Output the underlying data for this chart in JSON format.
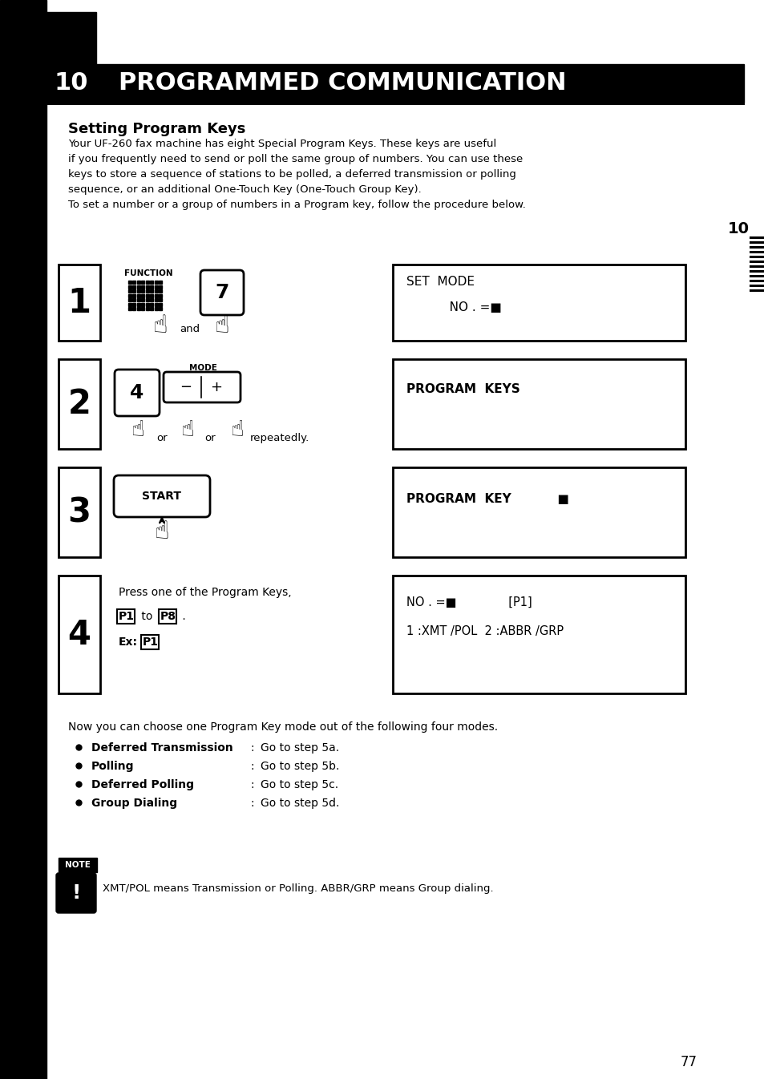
{
  "title_num": "10",
  "title_text": "PROGRAMMED COMMUNICATION",
  "section_title": "Setting Program Keys",
  "body_lines": [
    "Your UF-260 fax machine has eight Special Program Keys. These keys are useful",
    "if you frequently need to send or poll the same group of numbers. You can use these",
    "keys to store a sequence of stations to be polled, a deferred transmission or polling",
    "sequence, or an additional One-Touch Key (One-Touch Group Key).",
    "To set a number or a group of numbers in a Program key, follow the procedure below."
  ],
  "step1_disp1": "SET  MODE",
  "step1_disp2": "           NO . =■",
  "step2_disp1": "PROGRAM  KEYS",
  "step3_disp1": "PROGRAM  KEY           ■",
  "step4_disp1": "NO . =■              [P1]",
  "step4_disp2": "1 :XMT /POL  2 :ABBR /GRP",
  "step4_text1": "Press one of the Program Keys,",
  "now_text": "Now you can choose one Program Key mode out of the following four modes.",
  "bullets": [
    [
      "Deferred Transmission",
      "Go to step 5a."
    ],
    [
      "Polling",
      "Go to step 5b."
    ],
    [
      "Deferred Polling",
      "Go to step 5c."
    ],
    [
      "Group Dialing",
      "Go to step 5d."
    ]
  ],
  "note_text": "XMT/POL means Transmission or Polling. ABBR/GRP means Group dialing.",
  "page_num": "77",
  "bg": "#ffffff",
  "black": "#000000",
  "white": "#ffffff"
}
